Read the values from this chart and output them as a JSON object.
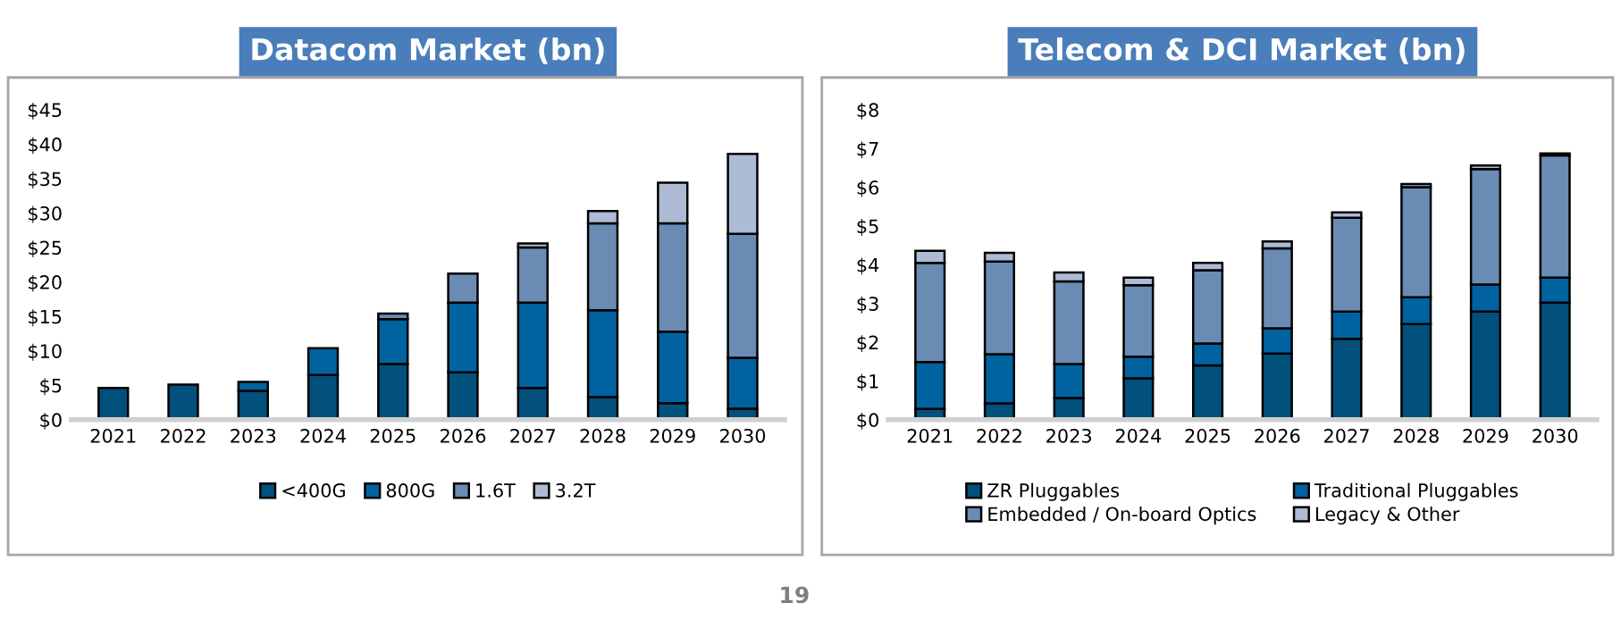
{
  "chart_data": [
    {
      "type": "bar",
      "title": "Datacom Market (bn)",
      "stacked": true,
      "legend": "bottom",
      "grid": false,
      "categories": [
        "2021",
        "2022",
        "2023",
        "2024",
        "2025",
        "2026",
        "2027",
        "2028",
        "2029",
        "2030"
      ],
      "series": [
        {
          "name": "<400G",
          "color": "#02507c",
          "values": [
            4.6,
            5.1,
            4.2,
            6.5,
            8.1,
            6.9,
            4.6,
            3.3,
            2.4,
            1.6
          ]
        },
        {
          "name": "800G",
          "color": "#0063a0",
          "values": [
            null,
            null,
            1.3,
            3.9,
            6.5,
            10.1,
            12.4,
            12.6,
            10.4,
            7.4
          ]
        },
        {
          "name": "1.6T",
          "color": "#6a8cb4",
          "values": [
            null,
            null,
            null,
            null,
            0.8,
            4.2,
            8.0,
            12.6,
            15.7,
            18.0
          ]
        },
        {
          "name": "3.2T",
          "color": "#adbbd4",
          "values": [
            null,
            null,
            null,
            null,
            null,
            null,
            0.6,
            1.8,
            5.9,
            11.6
          ]
        }
      ],
      "ylim": [
        0,
        45
      ],
      "yticks": [
        {
          "value": 0,
          "label": "$0"
        },
        {
          "value": 5,
          "label": "$5"
        },
        {
          "value": 10,
          "label": "$10"
        },
        {
          "value": 15,
          "label": "$15"
        },
        {
          "value": 20,
          "label": "$20"
        },
        {
          "value": 25,
          "label": "$25"
        },
        {
          "value": 30,
          "label": "$30"
        },
        {
          "value": 35,
          "label": "$35"
        },
        {
          "value": 40,
          "label": "$40"
        },
        {
          "value": 45,
          "label": "$45"
        }
      ]
    },
    {
      "type": "bar",
      "title": "Telecom & DCI Market (bn)",
      "stacked": true,
      "legend": "bottom",
      "grid": false,
      "categories": [
        "2021",
        "2022",
        "2023",
        "2024",
        "2025",
        "2026",
        "2027",
        "2028",
        "2029",
        "2030"
      ],
      "series": [
        {
          "name": "ZR Pluggables",
          "color": "#02507c",
          "values": [
            0.28,
            0.42,
            0.56,
            1.07,
            1.4,
            1.71,
            2.09,
            2.47,
            2.79,
            3.02
          ]
        },
        {
          "name": "Traditional Pluggables",
          "color": "#0063a0",
          "values": [
            1.21,
            1.27,
            0.88,
            0.56,
            0.57,
            0.65,
            0.7,
            0.69,
            0.7,
            0.65
          ]
        },
        {
          "name": "Embedded / On-board Optics",
          "color": "#6a8cb4",
          "values": [
            2.56,
            2.39,
            2.13,
            1.84,
            1.89,
            2.06,
            2.42,
            2.84,
            2.98,
            3.15
          ]
        },
        {
          "name": "Legacy & Other",
          "color": "#adbbd4",
          "values": [
            0.31,
            0.23,
            0.23,
            0.2,
            0.19,
            0.18,
            0.14,
            0.08,
            0.09,
            0.05
          ]
        }
      ],
      "ylim": [
        0,
        8
      ],
      "yticks": [
        {
          "value": 0,
          "label": "$0"
        },
        {
          "value": 1,
          "label": "$1"
        },
        {
          "value": 2,
          "label": "$2"
        },
        {
          "value": 3,
          "label": "$3"
        },
        {
          "value": 4,
          "label": "$4"
        },
        {
          "value": 5,
          "label": "$5"
        },
        {
          "value": 6,
          "label": "$6"
        },
        {
          "value": 7,
          "label": "$7"
        },
        {
          "value": 8,
          "label": "$8"
        }
      ],
      "annotations": [
        "19"
      ]
    }
  ]
}
